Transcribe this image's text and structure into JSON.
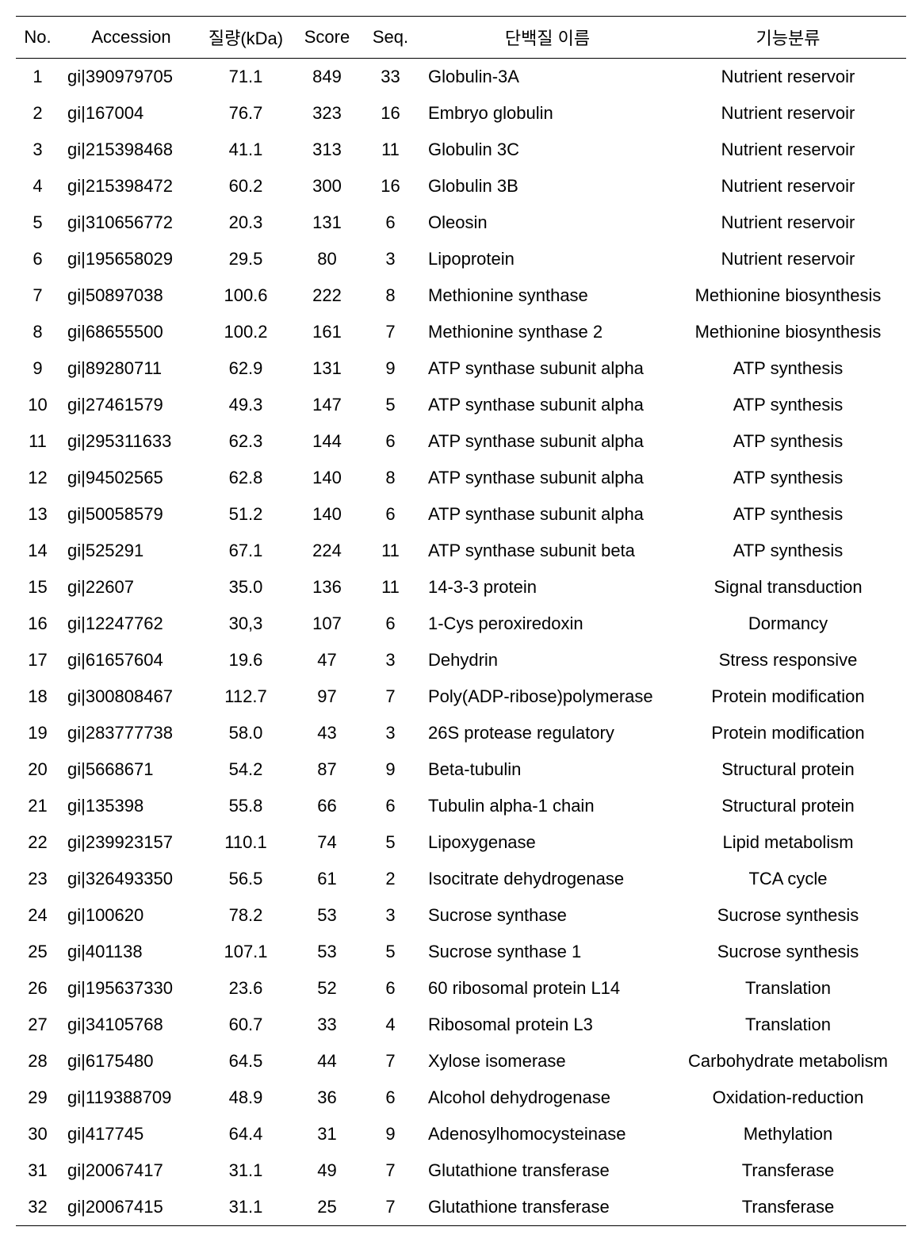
{
  "table": {
    "headers": {
      "no": "No.",
      "accession": "Accession",
      "mass": "질량(kDa)",
      "score": "Score",
      "seq": "Seq.",
      "protein": "단백질 이름",
      "function": "기능분류"
    },
    "rows": [
      {
        "no": "1",
        "acc": "gi|390979705",
        "mass": "71.1",
        "score": "849",
        "seq": "33",
        "name": "Globulin-3A",
        "func": "Nutrient reservoir"
      },
      {
        "no": "2",
        "acc": "gi|167004",
        "mass": "76.7",
        "score": "323",
        "seq": "16",
        "name": "Embryo globulin",
        "func": "Nutrient reservoir"
      },
      {
        "no": "3",
        "acc": "gi|215398468",
        "mass": "41.1",
        "score": "313",
        "seq": "11",
        "name": "Globulin 3C",
        "func": "Nutrient reservoir"
      },
      {
        "no": "4",
        "acc": "gi|215398472",
        "mass": "60.2",
        "score": "300",
        "seq": "16",
        "name": "Globulin 3B",
        "func": "Nutrient reservoir"
      },
      {
        "no": "5",
        "acc": "gi|310656772",
        "mass": "20.3",
        "score": "131",
        "seq": "6",
        "name": "Oleosin",
        "func": "Nutrient reservoir"
      },
      {
        "no": "6",
        "acc": "gi|195658029",
        "mass": "29.5",
        "score": "80",
        "seq": "3",
        "name": "Lipoprotein",
        "func": "Nutrient reservoir"
      },
      {
        "no": "7",
        "acc": "gi|50897038",
        "mass": "100.6",
        "score": "222",
        "seq": "8",
        "name": "Methionine synthase",
        "func": "Methionine biosynthesis"
      },
      {
        "no": "8",
        "acc": "gi|68655500",
        "mass": "100.2",
        "score": "161",
        "seq": "7",
        "name": "Methionine synthase 2",
        "func": "Methionine biosynthesis"
      },
      {
        "no": "9",
        "acc": "gi|89280711",
        "mass": "62.9",
        "score": "131",
        "seq": "9",
        "name": "ATP synthase subunit alpha",
        "func": "ATP synthesis"
      },
      {
        "no": "10",
        "acc": "gi|27461579",
        "mass": "49.3",
        "score": "147",
        "seq": "5",
        "name": "ATP synthase subunit alpha",
        "func": "ATP synthesis"
      },
      {
        "no": "11",
        "acc": "gi|295311633",
        "mass": "62.3",
        "score": "144",
        "seq": "6",
        "name": "ATP synthase subunit alpha",
        "func": "ATP synthesis"
      },
      {
        "no": "12",
        "acc": "gi|94502565",
        "mass": "62.8",
        "score": "140",
        "seq": "8",
        "name": "ATP synthase subunit alpha",
        "func": "ATP synthesis"
      },
      {
        "no": "13",
        "acc": "gi|50058579",
        "mass": "51.2",
        "score": "140",
        "seq": "6",
        "name": "ATP synthase subunit alpha",
        "func": "ATP synthesis"
      },
      {
        "no": "14",
        "acc": "gi|525291",
        "mass": "67.1",
        "score": "224",
        "seq": "11",
        "name": "ATP synthase subunit beta",
        "func": "ATP synthesis"
      },
      {
        "no": "15",
        "acc": "gi|22607",
        "mass": "35.0",
        "score": "136",
        "seq": "11",
        "name": "14-3-3 protein",
        "func": "Signal transduction"
      },
      {
        "no": "16",
        "acc": "gi|12247762",
        "mass": "30,3",
        "score": "107",
        "seq": "6",
        "name": "1-Cys peroxiredoxin",
        "func": "Dormancy"
      },
      {
        "no": "17",
        "acc": "gi|61657604",
        "mass": "19.6",
        "score": "47",
        "seq": "3",
        "name": "Dehydrin",
        "func": "Stress responsive"
      },
      {
        "no": "18",
        "acc": "gi|300808467",
        "mass": "112.7",
        "score": "97",
        "seq": "7",
        "name": "Poly(ADP-ribose)polymerase",
        "func": "Protein modification"
      },
      {
        "no": "19",
        "acc": "gi|283777738",
        "mass": "58.0",
        "score": "43",
        "seq": "3",
        "name": "26S protease regulatory",
        "func": "Protein modification"
      },
      {
        "no": "20",
        "acc": "gi|5668671",
        "mass": "54.2",
        "score": "87",
        "seq": "9",
        "name": "Beta-tubulin",
        "func": "Structural protein"
      },
      {
        "no": "21",
        "acc": "gi|135398",
        "mass": "55.8",
        "score": "66",
        "seq": "6",
        "name": "Tubulin alpha-1 chain",
        "func": "Structural protein"
      },
      {
        "no": "22",
        "acc": "gi|239923157",
        "mass": "110.1",
        "score": "74",
        "seq": "5",
        "name": "Lipoxygenase",
        "func": "Lipid metabolism"
      },
      {
        "no": "23",
        "acc": "gi|326493350",
        "mass": "56.5",
        "score": "61",
        "seq": "2",
        "name": "Isocitrate dehydrogenase",
        "func": "TCA cycle"
      },
      {
        "no": "24",
        "acc": "gi|100620",
        "mass": "78.2",
        "score": "53",
        "seq": "3",
        "name": "Sucrose synthase",
        "func": "Sucrose synthesis"
      },
      {
        "no": "25",
        "acc": "gi|401138",
        "mass": "107.1",
        "score": "53",
        "seq": "5",
        "name": "Sucrose synthase 1",
        "func": "Sucrose synthesis"
      },
      {
        "no": "26",
        "acc": "gi|195637330",
        "mass": "23.6",
        "score": "52",
        "seq": "6",
        "name": "60 ribosomal protein L14",
        "func": "Translation"
      },
      {
        "no": "27",
        "acc": "gi|34105768",
        "mass": "60.7",
        "score": "33",
        "seq": "4",
        "name": "Ribosomal protein L3",
        "func": "Translation"
      },
      {
        "no": "28",
        "acc": "gi|6175480",
        "mass": "64.5",
        "score": "44",
        "seq": "7",
        "name": "Xylose isomerase",
        "func": "Carbohydrate metabolism"
      },
      {
        "no": "29",
        "acc": "gi|119388709",
        "mass": "48.9",
        "score": "36",
        "seq": "6",
        "name": "Alcohol dehydrogenase",
        "func": "Oxidation-reduction"
      },
      {
        "no": "30",
        "acc": "gi|417745",
        "mass": "64.4",
        "score": "31",
        "seq": "9",
        "name": "Adenosylhomocysteinase",
        "func": "Methylation"
      },
      {
        "no": "31",
        "acc": "gi|20067417",
        "mass": "31.1",
        "score": "49",
        "seq": "7",
        "name": "Glutathione transferase",
        "func": "Transferase"
      },
      {
        "no": "32",
        "acc": "gi|20067415",
        "mass": "31.1",
        "score": "25",
        "seq": "7",
        "name": "Glutathione transferase",
        "func": "Transferase"
      }
    ]
  }
}
